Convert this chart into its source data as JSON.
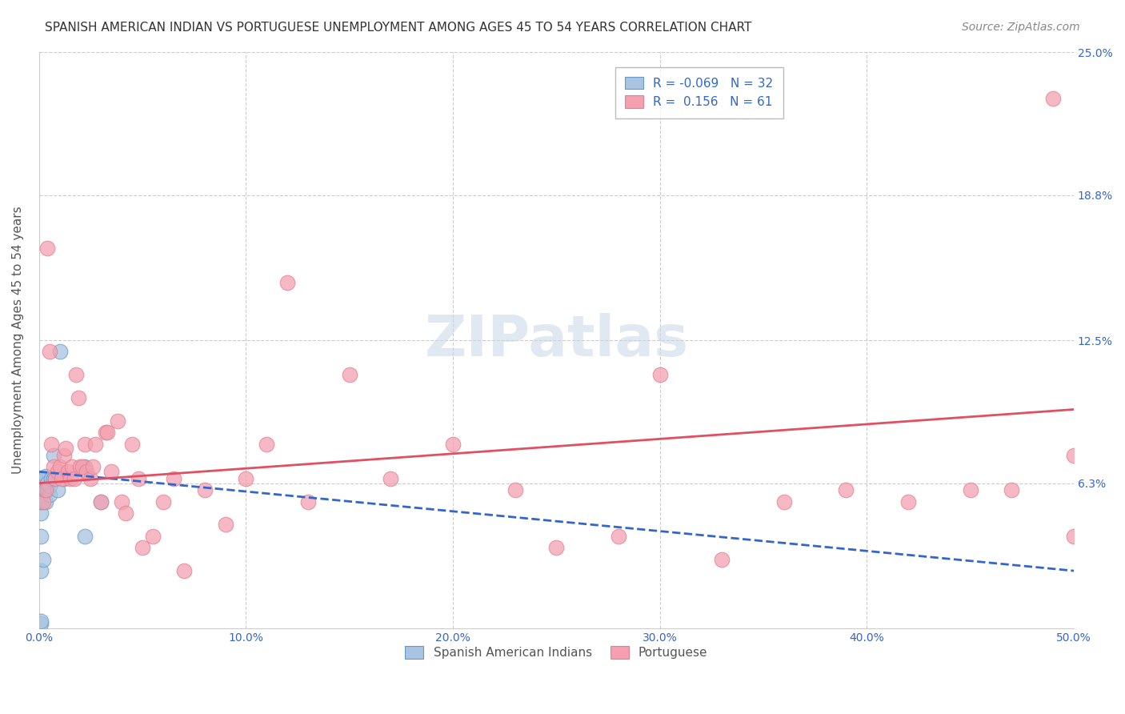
{
  "title": "SPANISH AMERICAN INDIAN VS PORTUGUESE UNEMPLOYMENT AMONG AGES 45 TO 54 YEARS CORRELATION CHART",
  "source": "Source: ZipAtlas.com",
  "ylabel": "Unemployment Among Ages 45 to 54 years",
  "xlim": [
    0.0,
    0.5
  ],
  "ylim": [
    0.0,
    0.25
  ],
  "ytick_labels": [
    "6.3%",
    "12.5%",
    "18.8%",
    "25.0%"
  ],
  "ytick_positions": [
    0.063,
    0.125,
    0.188,
    0.25
  ],
  "blue_color": "#a8c4e0",
  "pink_color": "#f4a0b0",
  "blue_edge_color": "#6699cc",
  "pink_edge_color": "#e08090",
  "blue_line_color": "#3366cc",
  "pink_line_color": "#e05060",
  "background_color": "#ffffff",
  "grid_color": "#cccccc",
  "blue_points_x": [
    0.001,
    0.001,
    0.001,
    0.001,
    0.001,
    0.001,
    0.001,
    0.001,
    0.002,
    0.002,
    0.002,
    0.002,
    0.002,
    0.003,
    0.003,
    0.003,
    0.003,
    0.003,
    0.004,
    0.004,
    0.005,
    0.005,
    0.006,
    0.007,
    0.007,
    0.008,
    0.009,
    0.01,
    0.012,
    0.022,
    0.022,
    0.03
  ],
  "blue_points_y": [
    0.002,
    0.003,
    0.025,
    0.04,
    0.05,
    0.055,
    0.058,
    0.06,
    0.03,
    0.06,
    0.063,
    0.064,
    0.065,
    0.055,
    0.06,
    0.063,
    0.065,
    0.066,
    0.06,
    0.063,
    0.058,
    0.062,
    0.065,
    0.065,
    0.075,
    0.065,
    0.06,
    0.12,
    0.065,
    0.07,
    0.04,
    0.055
  ],
  "pink_points_x": [
    0.002,
    0.003,
    0.004,
    0.005,
    0.006,
    0.007,
    0.008,
    0.009,
    0.01,
    0.011,
    0.012,
    0.013,
    0.014,
    0.015,
    0.016,
    0.017,
    0.018,
    0.019,
    0.02,
    0.021,
    0.022,
    0.023,
    0.025,
    0.026,
    0.027,
    0.03,
    0.032,
    0.033,
    0.035,
    0.038,
    0.04,
    0.042,
    0.045,
    0.048,
    0.05,
    0.055,
    0.06,
    0.065,
    0.07,
    0.08,
    0.09,
    0.1,
    0.11,
    0.12,
    0.13,
    0.15,
    0.17,
    0.2,
    0.23,
    0.25,
    0.28,
    0.3,
    0.33,
    0.36,
    0.39,
    0.42,
    0.45,
    0.47,
    0.49,
    0.5,
    0.5
  ],
  "pink_points_y": [
    0.055,
    0.06,
    0.165,
    0.12,
    0.08,
    0.07,
    0.065,
    0.068,
    0.07,
    0.065,
    0.075,
    0.078,
    0.068,
    0.065,
    0.07,
    0.065,
    0.11,
    0.1,
    0.07,
    0.07,
    0.08,
    0.068,
    0.065,
    0.07,
    0.08,
    0.055,
    0.085,
    0.085,
    0.068,
    0.09,
    0.055,
    0.05,
    0.08,
    0.065,
    0.035,
    0.04,
    0.055,
    0.065,
    0.025,
    0.06,
    0.045,
    0.065,
    0.08,
    0.15,
    0.055,
    0.11,
    0.065,
    0.08,
    0.06,
    0.035,
    0.04,
    0.11,
    0.03,
    0.055,
    0.06,
    0.055,
    0.06,
    0.06,
    0.23,
    0.075,
    0.04
  ],
  "blue_trend_x": [
    0.0,
    0.5
  ],
  "blue_trend_y_start": 0.068,
  "blue_trend_y_end": 0.025,
  "pink_trend_y_start": 0.063,
  "pink_trend_y_end": 0.095,
  "watermark_text": "ZIPatlas",
  "title_fontsize": 11,
  "axis_label_fontsize": 11,
  "tick_fontsize": 10,
  "legend_fontsize": 11,
  "source_fontsize": 10,
  "legend1_label1": "R = -0.069   N = 32",
  "legend1_label2": "R =  0.156   N = 61",
  "legend2_label1": "Spanish American Indians",
  "legend2_label2": "Portuguese"
}
